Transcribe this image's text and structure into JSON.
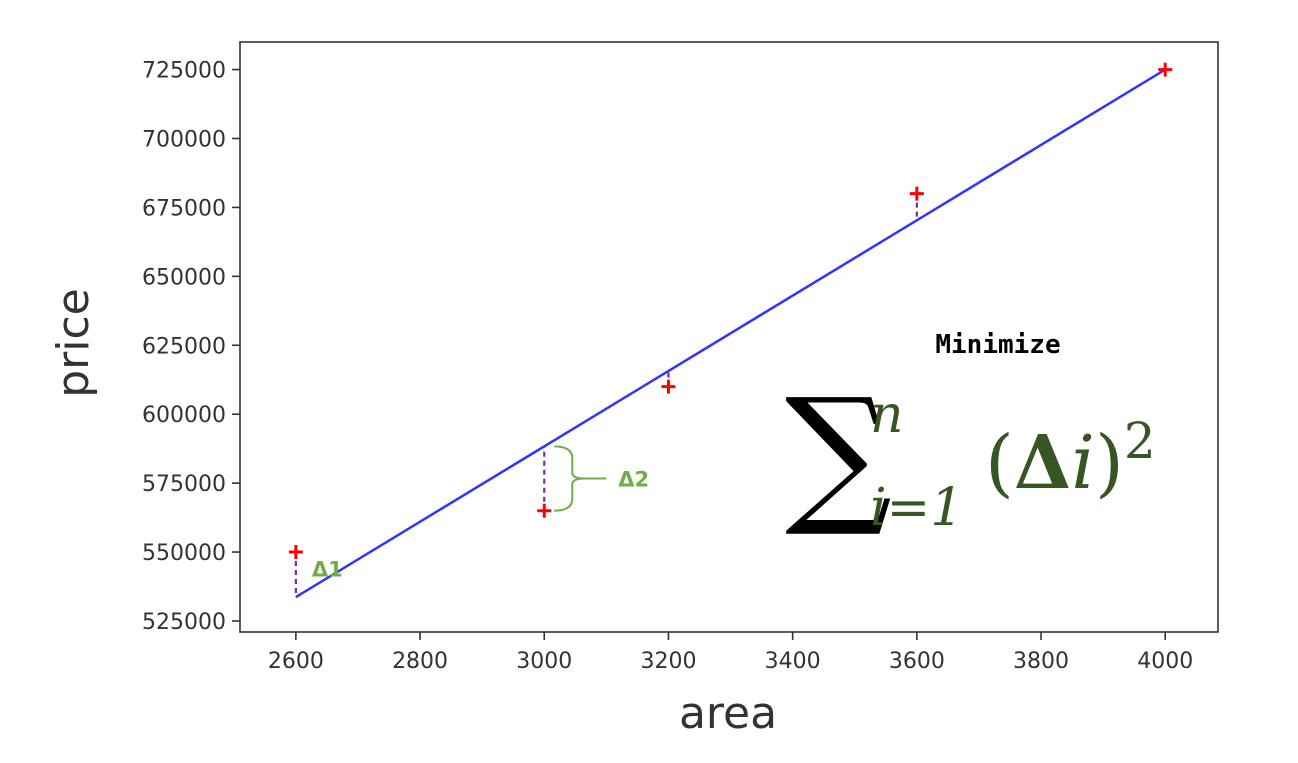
{
  "chart_data": {
    "type": "scatter",
    "xlabel": "area",
    "ylabel": "price",
    "xlim": [
      2510,
      4085
    ],
    "ylim": [
      521000,
      735000
    ],
    "x_ticks": [
      2600,
      2800,
      3000,
      3200,
      3400,
      3600,
      3800,
      4000
    ],
    "y_ticks": [
      525000,
      550000,
      575000,
      600000,
      625000,
      650000,
      675000,
      700000,
      725000
    ],
    "grid": false,
    "points": [
      {
        "x": 2600,
        "y": 550000
      },
      {
        "x": 3000,
        "y": 565000
      },
      {
        "x": 3200,
        "y": 610000
      },
      {
        "x": 3600,
        "y": 680000
      },
      {
        "x": 4000,
        "y": 725000
      }
    ],
    "fit_line": {
      "x": [
        2600,
        4000
      ],
      "y": [
        533664.38,
        725000
      ]
    },
    "residual_labels": [
      {
        "label": "Δ1",
        "point_index": 0
      },
      {
        "label": "Δ2",
        "point_index": 1
      }
    ],
    "annotation": {
      "heading": "Minimize",
      "sum_symbol": "∑",
      "upper": "n",
      "lower": "i=1",
      "open": "(",
      "delta": "Δ",
      "index": "i",
      "close": ")",
      "power": "2"
    },
    "colors": {
      "points": "#ff0000",
      "fit_line": "#3333ff",
      "residual": "#7030a0",
      "delta_label": "#70ad47",
      "formula": "#375623",
      "axes": "#333333"
    }
  }
}
